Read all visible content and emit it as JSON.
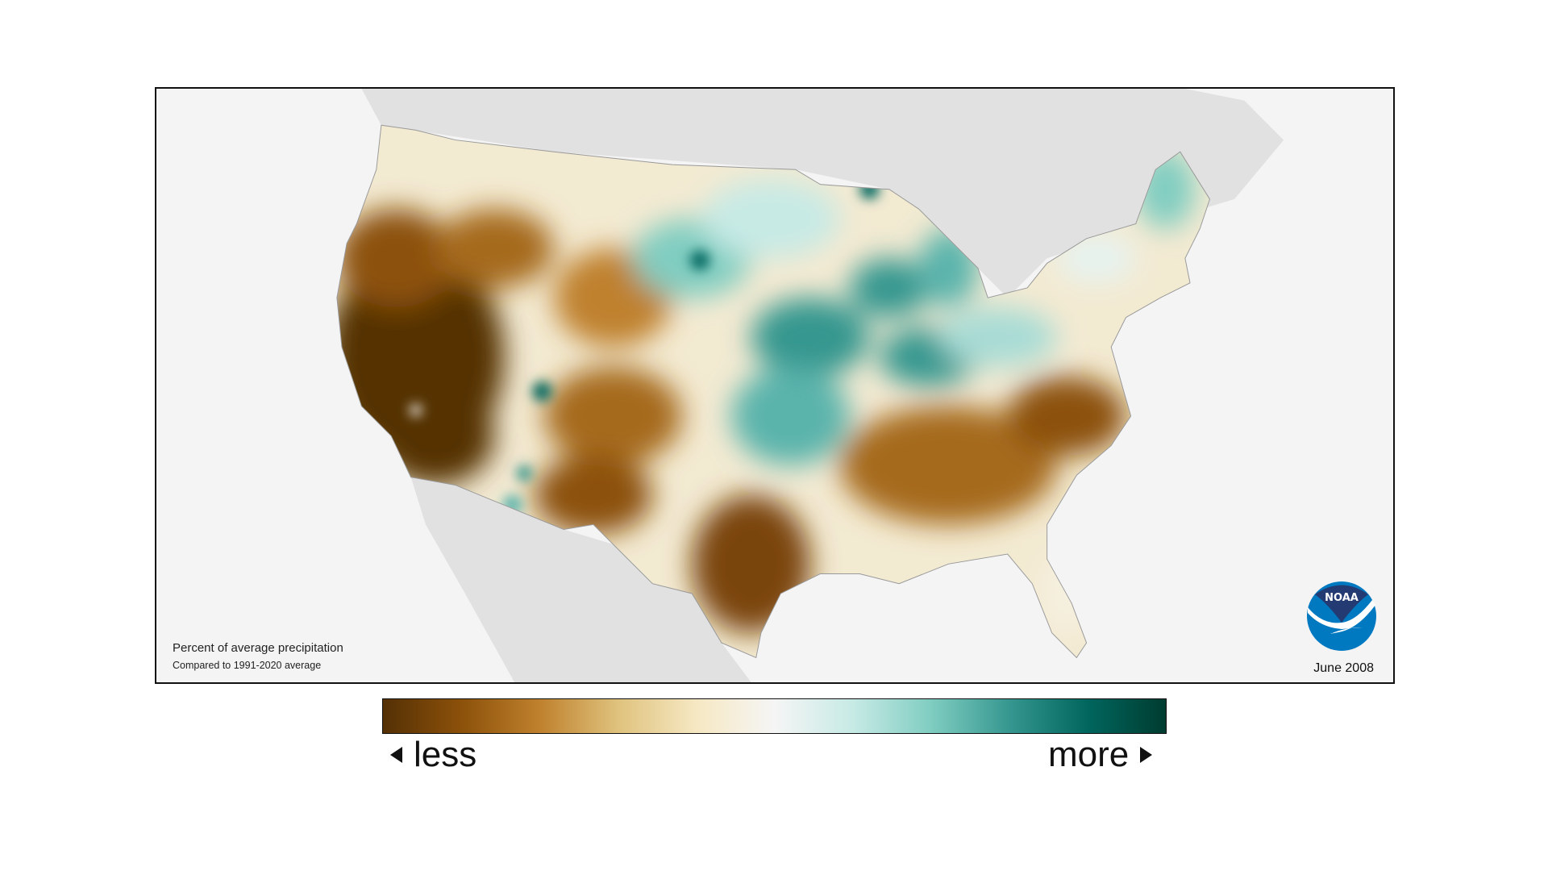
{
  "map": {
    "title": "Percent of average precipitation",
    "subtitle": "Compared to 1991-2020 average",
    "date": "June 2008",
    "logo_text": "NOAA",
    "colors": {
      "ocean": "#f4f4f4",
      "land_outside": "#e1e1e1",
      "much_less": "#543005",
      "less": "#bf812d",
      "near_normal": "#f5f5f5",
      "more": "#5ab4ac",
      "much_more": "#003c30",
      "logo_dark": "#233a73",
      "logo_light": "#0079c1"
    }
  },
  "legend": {
    "less_label": "less",
    "more_label": "more",
    "gradient": [
      "#543005",
      "#8c510a",
      "#bf812d",
      "#dfc27d",
      "#f6e8c3",
      "#f5f5f5",
      "#c7eae5",
      "#80cdc1",
      "#35978f",
      "#01665e",
      "#003c30"
    ]
  }
}
